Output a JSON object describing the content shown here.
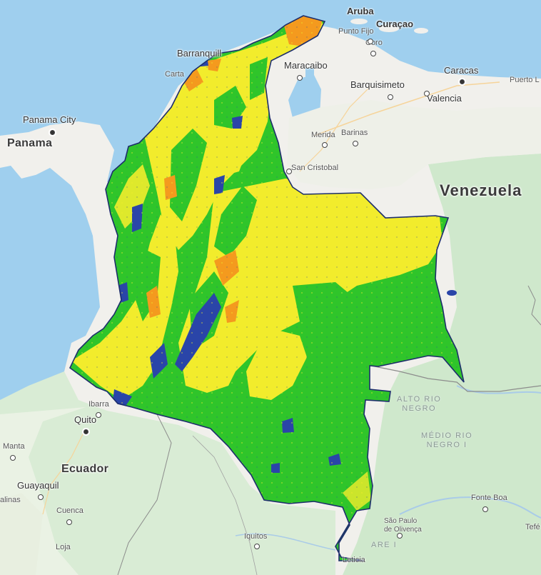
{
  "map": {
    "countries": {
      "panama": "Panama",
      "venezuela": "Venezuela",
      "ecuador": "Ecuador"
    },
    "cities": {
      "aruba": "Aruba",
      "curacao": "Curaçao",
      "punto_fijo": "Punto Fijo",
      "coro": "Coro",
      "barranquilla": "Barranquill",
      "cartagena": "Carta",
      "maracaibo": "Maracaibo",
      "barquisimeto": "Barquisimeto",
      "caracas": "Caracas",
      "valencia": "Valencia",
      "puerto_la_cruz": "Puerto L",
      "panama_city": "Panama City",
      "merida": "Merida",
      "barinas": "Barinas",
      "san_cristobal": "San Cristobal",
      "ibarra": "Ibarra",
      "quito": "Quito",
      "manta": "Manta",
      "guayaquil": "Guayaquil",
      "cuenca": "Cuenca",
      "loja": "Loja",
      "iquitos": "Iquitos",
      "leticia": "Leticia",
      "sao_paulo_olivenca": "São Paulo\nde Olivença",
      "fonte_boa": "Fonte Boa",
      "tefe": "Tefé",
      "salinas": "alinas"
    },
    "regions": {
      "alto_rio_negro": "ALTO RIO\nNEGRO",
      "medio_rio_negro": "MÉDIO RIO\nNEGRO I",
      "solimoes_fragment": "ARE I"
    },
    "overlay_colors": {
      "water": "#9fcfee",
      "land": "#f1f0ec",
      "forest_land": "#cfe8cc",
      "class_green": "#2fc52a",
      "class_yellow": "#f2ec2c",
      "class_orange": "#f49a1e",
      "class_blue": "#2a45a8",
      "border_dark": "#1c2d6b"
    }
  }
}
